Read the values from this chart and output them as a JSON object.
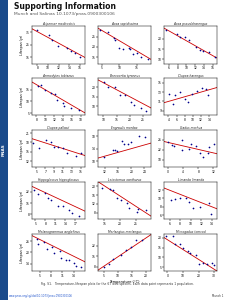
{
  "title": "Supporting Information",
  "subtitle": "Munch and Salinas 10.1073/pnas.0900300106",
  "fig_caption": "Fig. S1.   Temperature-lifespan plots for the 67 wild species. Each data point represents 1 population.",
  "footer_left": "www.pnas.org/cgi/doi/10.1073/pnas.0900300106",
  "footer_right": "Munch 1",
  "background_color": "#ffffff",
  "sidebar_color": "#1a4a8a",
  "n_rows": 5,
  "n_cols": 3,
  "subplot_titles": [
    "Acipenser medirostris",
    "Alosa sapidissima",
    "Alosa pseudoharengus",
    "Ammodytes tobianus",
    "Brevoortia tyrannus",
    "Clupea harengus",
    "Clupea pallasii",
    "Engraulis mordax",
    "Gadus morhua",
    "Hippoglossus hippoglossus",
    "Leiostomus xanthurus",
    "Limanda limanda",
    "Melanogrammus aeglefinus",
    "Merlangius merlangus",
    "Microgadus tomcod"
  ],
  "point_color": "#00008b",
  "line_color": "#cc0000",
  "marker_size": 1.5,
  "line_width": 0.6,
  "ylabel": "Lifespan (yr)",
  "xlabel_bottom": "Temperature (°C)",
  "subplot_datasets": [
    {
      "x": [
        8,
        10,
        11,
        12,
        13,
        14,
        15,
        16
      ],
      "y": [
        36,
        32,
        28,
        25,
        22,
        20,
        17,
        14
      ],
      "slope": -2.3,
      "intercept": 54,
      "xmin": 7,
      "xmax": 17,
      "ymin": 10,
      "ymax": 40,
      "xticks": [
        8,
        10,
        12,
        14,
        16
      ],
      "yticks": [
        15,
        25,
        35
      ]
    },
    {
      "x": [
        5,
        7,
        8,
        9,
        10,
        11,
        12,
        13,
        14,
        15,
        16,
        18
      ],
      "y": [
        28,
        26,
        25,
        24,
        22,
        21,
        20,
        19,
        18,
        17,
        16,
        14
      ],
      "slope": -1.0,
      "intercept": 33,
      "xmin": 4,
      "xmax": 19,
      "ymin": 12,
      "ymax": 30,
      "xticks": [
        5,
        10,
        15
      ],
      "yticks": [
        15,
        20,
        25
      ]
    },
    {
      "x": [
        6,
        8,
        9,
        10,
        11,
        12,
        13,
        14,
        15,
        16
      ],
      "y": [
        24,
        22,
        21,
        20,
        18,
        17,
        16,
        14,
        13,
        12
      ],
      "slope": -1.2,
      "intercept": 31,
      "xmin": 5,
      "xmax": 17,
      "ymin": 8,
      "ymax": 26,
      "xticks": [
        6,
        8,
        10,
        12,
        14,
        16
      ],
      "yticks": [
        10,
        15,
        20
      ]
    },
    {
      "x": [
        8,
        9,
        10,
        11,
        12,
        13,
        14,
        15,
        16,
        18
      ],
      "y": [
        18,
        16,
        14,
        13,
        12,
        11,
        10,
        9,
        8,
        6
      ],
      "slope": -1.1,
      "intercept": 26,
      "xmin": 7,
      "xmax": 19,
      "ymin": 4,
      "ymax": 20,
      "xticks": [
        8,
        10,
        12,
        14,
        16,
        18
      ],
      "yticks": [
        5,
        10,
        15
      ]
    },
    {
      "x": [
        10,
        12,
        14,
        16,
        18,
        20,
        22,
        24,
        26
      ],
      "y": [
        22,
        20,
        18,
        16,
        14,
        12,
        10,
        9,
        8
      ],
      "slope": -0.75,
      "intercept": 30,
      "xmin": 8,
      "xmax": 28,
      "ymin": 5,
      "ymax": 25,
      "xticks": [
        10,
        15,
        20,
        25
      ],
      "yticks": [
        10,
        15,
        20
      ]
    },
    {
      "x": [
        4,
        5,
        6,
        7,
        8,
        9,
        10,
        11,
        12,
        13,
        14
      ],
      "y": [
        11,
        11,
        12,
        12,
        13,
        12,
        13,
        13,
        14,
        13,
        14
      ],
      "slope": 0.25,
      "intercept": 10,
      "xmin": 3,
      "xmax": 16,
      "ymin": 8,
      "ymax": 16,
      "xticks": [
        4,
        6,
        8,
        10,
        12,
        14
      ],
      "yticks": [
        9,
        11,
        13,
        15
      ]
    },
    {
      "x": [
        5,
        6,
        7,
        8,
        9,
        10,
        11,
        12,
        14,
        15
      ],
      "y": [
        19,
        18,
        17,
        17,
        16,
        16,
        15,
        15,
        14,
        14
      ],
      "slope": -0.45,
      "intercept": 21,
      "xmin": 4,
      "xmax": 16,
      "ymin": 10,
      "ymax": 22,
      "xticks": [
        5,
        7,
        9,
        11,
        13,
        15
      ],
      "yticks": [
        12,
        15,
        18,
        21
      ]
    },
    {
      "x": [
        12,
        14,
        15,
        16,
        17,
        18,
        19,
        20,
        22,
        24
      ],
      "y": [
        12,
        13,
        14,
        15,
        16,
        17,
        16,
        15,
        17,
        18
      ],
      "slope": 0.3,
      "intercept": 8,
      "xmin": 10,
      "xmax": 26,
      "ymin": 8,
      "ymax": 20,
      "xticks": [
        12,
        16,
        20,
        24
      ],
      "yticks": [
        10,
        14,
        18
      ]
    },
    {
      "x": [
        0,
        1,
        2,
        3,
        4,
        5,
        6,
        7,
        8,
        9,
        10,
        11,
        12
      ],
      "y": [
        26,
        25,
        24,
        27,
        23,
        22,
        25,
        24,
        21,
        20,
        19,
        22,
        23
      ],
      "slope": -0.35,
      "intercept": 25,
      "xmin": -1,
      "xmax": 13,
      "ymin": 15,
      "ymax": 30,
      "xticks": [
        0,
        4,
        8,
        12
      ],
      "yticks": [
        18,
        22,
        26
      ]
    },
    {
      "x": [
        5,
        6,
        8,
        9,
        10,
        12,
        13,
        15,
        16,
        18
      ],
      "y": [
        24,
        22,
        20,
        18,
        16,
        14,
        13,
        11,
        10,
        8
      ],
      "slope": -0.95,
      "intercept": 29,
      "xmin": 4,
      "xmax": 20,
      "ymin": 5,
      "ymax": 28,
      "xticks": [
        5,
        8,
        11,
        14,
        17
      ],
      "yticks": [
        8,
        15,
        22
      ]
    },
    {
      "x": [
        15,
        17,
        18,
        19,
        20,
        22,
        23,
        25,
        26,
        28
      ],
      "y": [
        20,
        18,
        17,
        15,
        14,
        12,
        11,
        10,
        9,
        8
      ],
      "slope": -0.92,
      "intercept": 34,
      "xmin": 13,
      "xmax": 30,
      "ymin": 5,
      "ymax": 22,
      "xticks": [
        15,
        20,
        25
      ],
      "yticks": [
        8,
        12,
        16,
        20
      ]
    },
    {
      "x": [
        6,
        7,
        8,
        9,
        10,
        11,
        12,
        13,
        14
      ],
      "y": [
        12,
        11,
        10,
        10,
        9,
        9,
        8,
        8,
        7
      ],
      "slope": -0.5,
      "intercept": 15,
      "xmin": 5,
      "xmax": 15,
      "ymin": 5,
      "ymax": 14,
      "xticks": [
        6,
        8,
        10,
        12,
        14
      ],
      "yticks": [
        6,
        8,
        10,
        12
      ]
    },
    {
      "x": [
        4,
        5,
        6,
        7,
        8,
        9,
        10,
        11,
        12,
        13,
        14,
        15,
        16
      ],
      "y": [
        28,
        26,
        25,
        23,
        22,
        20,
        19,
        18,
        17,
        16,
        14,
        13,
        12
      ],
      "slope": -1.0,
      "intercept": 32,
      "xmin": 3,
      "xmax": 17,
      "ymin": 10,
      "ymax": 30,
      "xticks": [
        5,
        8,
        11,
        14
      ],
      "yticks": [
        14,
        20,
        26
      ]
    },
    {
      "x": [
        5,
        7,
        9,
        11,
        13,
        15,
        17,
        19
      ],
      "y": [
        8,
        10,
        13,
        16,
        19,
        22,
        25,
        27
      ],
      "slope": 1.25,
      "intercept": 2,
      "xmin": 3,
      "xmax": 22,
      "ymin": 5,
      "ymax": 30,
      "xticks": [
        5,
        10,
        15,
        20
      ],
      "yticks": [
        8,
        15,
        22
      ]
    },
    {
      "x": [
        0,
        3,
        5,
        8,
        10,
        13,
        15,
        18,
        20,
        23,
        25,
        28,
        30
      ],
      "y": [
        20,
        19,
        18,
        17,
        15,
        13,
        12,
        10,
        9,
        8,
        7,
        6,
        5
      ],
      "slope": -0.5,
      "intercept": 19,
      "xmin": -2,
      "xmax": 32,
      "ymin": 3,
      "ymax": 22,
      "xticks": [
        0,
        10,
        20,
        30
      ],
      "yticks": [
        5,
        10,
        15,
        20
      ]
    }
  ]
}
